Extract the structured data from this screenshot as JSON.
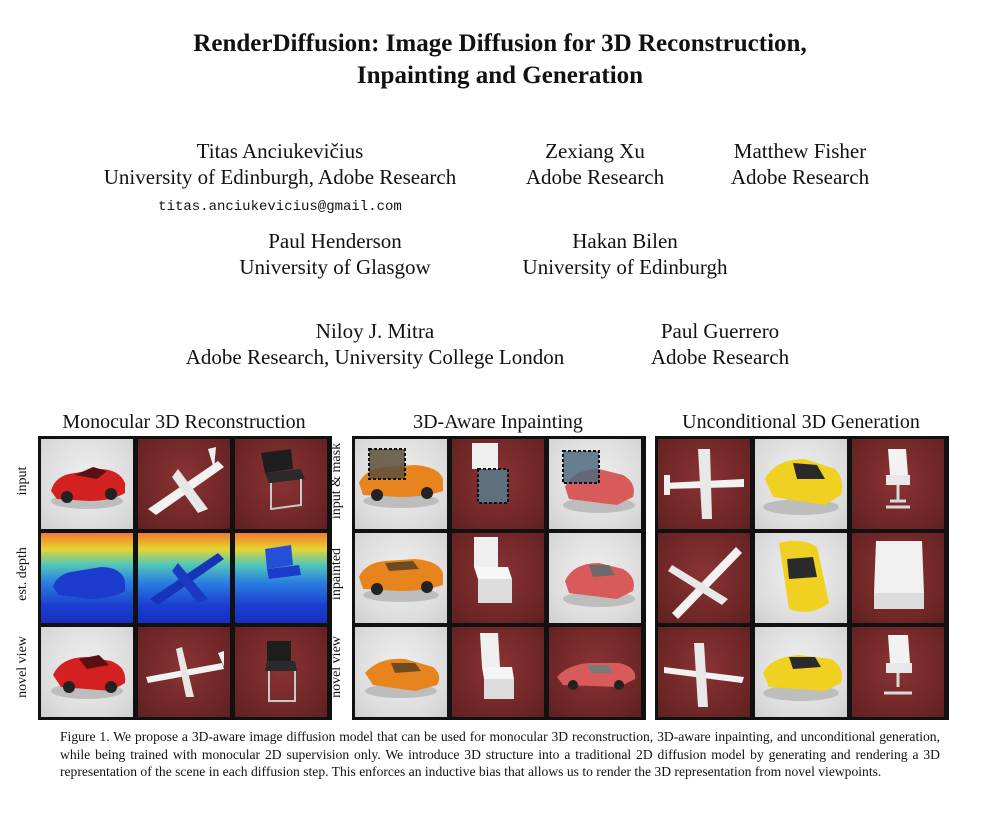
{
  "paper": {
    "title_line1": "RenderDiffusion: Image Diffusion for 3D Reconstruction,",
    "title_line2": "Inpainting and Generation",
    "authors": [
      {
        "name": "Titas Anciukevičius",
        "affiliation": "University of Edinburgh, Adobe Research",
        "email": "titas.anciukevicius@gmail.com"
      },
      {
        "name": "Zexiang Xu",
        "affiliation": "Adobe Research"
      },
      {
        "name": "Matthew Fisher",
        "affiliation": "Adobe Research"
      },
      {
        "name": "Paul Henderson",
        "affiliation": "University of Glasgow"
      },
      {
        "name": "Hakan Bilen",
        "affiliation": "University of Edinburgh"
      },
      {
        "name": "Niloy J. Mitra",
        "affiliation": "Adobe Research, University College London"
      },
      {
        "name": "Paul Guerrero",
        "affiliation": "Adobe Research"
      }
    ]
  },
  "figure": {
    "panels": [
      {
        "title": "Monocular 3D Reconstruction",
        "rows": [
          "input",
          "est. depth",
          "novel view"
        ]
      },
      {
        "title": "3D-Aware Inpainting",
        "rows": [
          "input & mask",
          "inpainted",
          "novel view"
        ]
      },
      {
        "title": "Unconditional 3D Generation",
        "rows": []
      }
    ],
    "caption": "Figure 1.  We propose a 3D-aware image diffusion model that can be used for monocular 3D reconstruction, 3D-aware inpainting, and unconditional generation, while being trained with monocular 2D supervision only.  We introduce 3D structure into a traditional 2D diffusion model by generating and rendering a 3D representation of the scene in each diffusion step. This enforces an inductive bias that allows us to render the 3D representation from novel viewpoints."
  },
  "colors": {
    "background_red": "#6e2626",
    "background_grey": "#dcdcdc",
    "car_red": "#d42020",
    "car_orange": "#e8841e",
    "car_pink": "#d85a5a",
    "car_yellow": "#f0d020"
  }
}
